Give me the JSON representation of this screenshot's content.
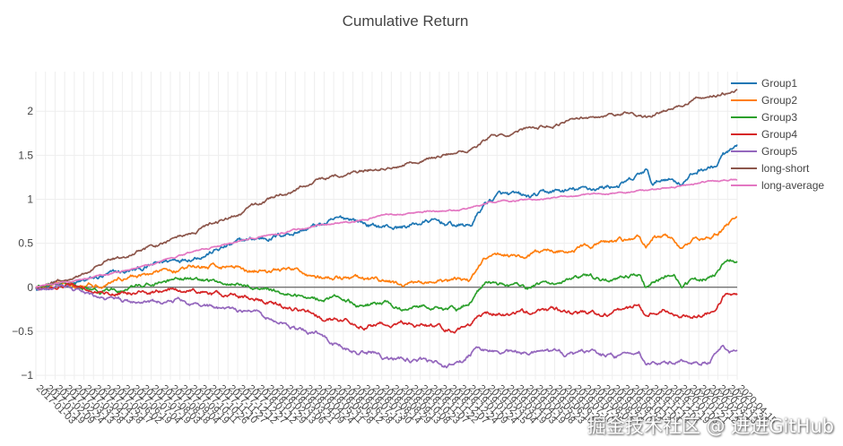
{
  "chart_data": {
    "type": "line",
    "title": "Cumulative Return",
    "xlabel": "",
    "ylabel": "",
    "ylim": [
      -1.05,
      2.45
    ],
    "yticks": [
      -1,
      -0.5,
      0,
      0.5,
      1,
      1.5,
      2
    ],
    "ytick_labels": [
      "−1",
      "−0.5",
      "0",
      "0.5",
      "1",
      "1.5",
      "2"
    ],
    "grid": true,
    "legend_position": "top-right",
    "x_tick_labels": [
      "2017-01-03",
      "2017-01-19",
      "2017-02-09",
      "2017-02-24",
      "2017-03-13",
      "2017-03-28",
      "2017-04-13",
      "2017-04-28",
      "2017-05-17",
      "2017-06-02",
      "2017-06-19",
      "2017-07-04",
      "2017-07-19",
      "2017-08-03",
      "2017-08-18",
      "2017-09-04",
      "2017-09-19",
      "2017-10-11",
      "2017-10-26",
      "2017-11-10",
      "2017-11-27",
      "2017-12-12",
      "2017-12-27",
      "2018-01-12",
      "2018-01-29",
      "2018-02-13",
      "2018-03-06",
      "2018-03-21",
      "2018-04-09",
      "2018-04-24",
      "2018-05-11",
      "2018-05-28",
      "2018-06-12",
      "2018-06-28",
      "2018-07-13",
      "2018-07-30",
      "2018-08-14",
      "2018-08-29",
      "2018-09-13",
      "2018-10-08",
      "2018-10-23",
      "2018-11-07",
      "2018-11-22",
      "2018-12-07",
      "2018-12-24",
      "2019-01-09",
      "2019-01-24",
      "2019-02-15",
      "2019-03-04",
      "2019-03-19",
      "2019-04-03",
      "2019-04-19",
      "2019-05-08",
      "2019-05-23",
      "2019-06-10",
      "2019-06-25",
      "2019-07-10",
      "2019-07-25",
      "2019-08-09",
      "2019-08-26",
      "2019-09-10",
      "2019-09-26",
      "2019-10-18",
      "2019-11-04",
      "2019-11-19",
      "2019-12-04",
      "2019-12-19",
      "2020-01-06",
      "2020-01-21",
      "2020-02-12",
      "2020-02-27",
      "2020-03-13",
      "2020-03-30",
      "2020-04-15"
    ],
    "series": [
      {
        "name": "Group1",
        "color": "#1f77b4",
        "volatility": 0.018,
        "anchors": [
          [
            0,
            0
          ],
          [
            0.06,
            0.04
          ],
          [
            0.1,
            0.12
          ],
          [
            0.15,
            0.2
          ],
          [
            0.2,
            0.32
          ],
          [
            0.25,
            0.42
          ],
          [
            0.3,
            0.52
          ],
          [
            0.35,
            0.6
          ],
          [
            0.4,
            0.7
          ],
          [
            0.45,
            0.78
          ],
          [
            0.48,
            0.7
          ],
          [
            0.52,
            0.68
          ],
          [
            0.56,
            0.75
          ],
          [
            0.6,
            0.7
          ],
          [
            0.62,
            0.7
          ],
          [
            0.64,
            0.95
          ],
          [
            0.66,
            1.05
          ],
          [
            0.7,
            1.0
          ],
          [
            0.74,
            1.08
          ],
          [
            0.78,
            1.1
          ],
          [
            0.82,
            1.15
          ],
          [
            0.85,
            1.2
          ],
          [
            0.87,
            1.32
          ],
          [
            0.88,
            1.15
          ],
          [
            0.9,
            1.25
          ],
          [
            0.92,
            1.2
          ],
          [
            0.95,
            1.35
          ],
          [
            0.97,
            1.38
          ],
          [
            0.98,
            1.5
          ],
          [
            1.0,
            1.56
          ]
        ]
      },
      {
        "name": "Group2",
        "color": "#ff7f0e",
        "volatility": 0.016,
        "anchors": [
          [
            0,
            0
          ],
          [
            0.04,
            0.03
          ],
          [
            0.07,
            0.06
          ],
          [
            0.09,
            0.05
          ],
          [
            0.12,
            0.12
          ],
          [
            0.17,
            0.17
          ],
          [
            0.22,
            0.22
          ],
          [
            0.28,
            0.25
          ],
          [
            0.31,
            0.2
          ],
          [
            0.36,
            0.2
          ],
          [
            0.42,
            0.1
          ],
          [
            0.46,
            0.08
          ],
          [
            0.5,
            0.05
          ],
          [
            0.53,
            0.02
          ],
          [
            0.55,
            0.06
          ],
          [
            0.58,
            0.05
          ],
          [
            0.62,
            0.08
          ],
          [
            0.64,
            0.3
          ],
          [
            0.67,
            0.38
          ],
          [
            0.7,
            0.35
          ],
          [
            0.74,
            0.42
          ],
          [
            0.78,
            0.45
          ],
          [
            0.81,
            0.5
          ],
          [
            0.84,
            0.52
          ],
          [
            0.86,
            0.57
          ],
          [
            0.87,
            0.45
          ],
          [
            0.88,
            0.55
          ],
          [
            0.9,
            0.58
          ],
          [
            0.92,
            0.46
          ],
          [
            0.95,
            0.55
          ],
          [
            0.98,
            0.65
          ],
          [
            0.99,
            0.75
          ],
          [
            1.0,
            0.78
          ]
        ]
      },
      {
        "name": "Group3",
        "color": "#2ca02c",
        "volatility": 0.015,
        "anchors": [
          [
            0,
            0
          ],
          [
            0.05,
            0.03
          ],
          [
            0.08,
            -0.06
          ],
          [
            0.12,
            -0.05
          ],
          [
            0.17,
            0.05
          ],
          [
            0.22,
            0.08
          ],
          [
            0.27,
            0.05
          ],
          [
            0.3,
            0.02
          ],
          [
            0.35,
            -0.05
          ],
          [
            0.4,
            -0.12
          ],
          [
            0.43,
            -0.1
          ],
          [
            0.46,
            -0.2
          ],
          [
            0.5,
            -0.18
          ],
          [
            0.52,
            -0.25
          ],
          [
            0.55,
            -0.18
          ],
          [
            0.58,
            -0.22
          ],
          [
            0.6,
            -0.25
          ],
          [
            0.62,
            -0.15
          ],
          [
            0.64,
            0.05
          ],
          [
            0.67,
            0.03
          ],
          [
            0.7,
            0.0
          ],
          [
            0.73,
            0.05
          ],
          [
            0.76,
            0.08
          ],
          [
            0.79,
            0.1
          ],
          [
            0.82,
            0.05
          ],
          [
            0.85,
            0.12
          ],
          [
            0.86,
            0.15
          ],
          [
            0.87,
            0.0
          ],
          [
            0.89,
            0.1
          ],
          [
            0.91,
            0.15
          ],
          [
            0.92,
            0.03
          ],
          [
            0.95,
            0.08
          ],
          [
            0.97,
            0.15
          ],
          [
            0.98,
            0.28
          ],
          [
            1.0,
            0.32
          ]
        ]
      },
      {
        "name": "Group4",
        "color": "#d62728",
        "volatility": 0.016,
        "anchors": [
          [
            0,
            0
          ],
          [
            0.05,
            0.04
          ],
          [
            0.08,
            -0.05
          ],
          [
            0.13,
            -0.05
          ],
          [
            0.18,
            -0.03
          ],
          [
            0.23,
            -0.05
          ],
          [
            0.27,
            -0.1
          ],
          [
            0.3,
            -0.12
          ],
          [
            0.34,
            -0.18
          ],
          [
            0.38,
            -0.25
          ],
          [
            0.41,
            -0.35
          ],
          [
            0.44,
            -0.38
          ],
          [
            0.48,
            -0.42
          ],
          [
            0.52,
            -0.38
          ],
          [
            0.56,
            -0.45
          ],
          [
            0.6,
            -0.48
          ],
          [
            0.62,
            -0.4
          ],
          [
            0.63,
            -0.28
          ],
          [
            0.66,
            -0.28
          ],
          [
            0.7,
            -0.3
          ],
          [
            0.74,
            -0.25
          ],
          [
            0.78,
            -0.3
          ],
          [
            0.82,
            -0.28
          ],
          [
            0.85,
            -0.25
          ],
          [
            0.86,
            -0.2
          ],
          [
            0.87,
            -0.32
          ],
          [
            0.9,
            -0.25
          ],
          [
            0.92,
            -0.33
          ],
          [
            0.95,
            -0.3
          ],
          [
            0.97,
            -0.25
          ],
          [
            0.98,
            -0.12
          ],
          [
            1.0,
            -0.1
          ]
        ]
      },
      {
        "name": "Group5",
        "color": "#9467bd",
        "volatility": 0.016,
        "anchors": [
          [
            0,
            0
          ],
          [
            0.04,
            -0.02
          ],
          [
            0.08,
            -0.12
          ],
          [
            0.1,
            -0.15
          ],
          [
            0.15,
            -0.18
          ],
          [
            0.2,
            -0.15
          ],
          [
            0.25,
            -0.22
          ],
          [
            0.3,
            -0.28
          ],
          [
            0.33,
            -0.35
          ],
          [
            0.37,
            -0.45
          ],
          [
            0.4,
            -0.52
          ],
          [
            0.42,
            -0.65
          ],
          [
            0.45,
            -0.72
          ],
          [
            0.48,
            -0.75
          ],
          [
            0.5,
            -0.8
          ],
          [
            0.53,
            -0.82
          ],
          [
            0.56,
            -0.85
          ],
          [
            0.58,
            -0.9
          ],
          [
            0.61,
            -0.85
          ],
          [
            0.63,
            -0.7
          ],
          [
            0.66,
            -0.72
          ],
          [
            0.7,
            -0.75
          ],
          [
            0.74,
            -0.78
          ],
          [
            0.78,
            -0.76
          ],
          [
            0.82,
            -0.8
          ],
          [
            0.85,
            -0.8
          ],
          [
            0.86,
            -0.72
          ],
          [
            0.87,
            -0.85
          ],
          [
            0.9,
            -0.85
          ],
          [
            0.93,
            -0.85
          ],
          [
            0.96,
            -0.82
          ],
          [
            0.98,
            -0.67
          ],
          [
            0.99,
            -0.72
          ],
          [
            1.0,
            -0.67
          ]
        ]
      },
      {
        "name": "long-short",
        "color": "#8c564b",
        "volatility": 0.012,
        "anchors": [
          [
            0,
            0
          ],
          [
            0.06,
            0.12
          ],
          [
            0.1,
            0.28
          ],
          [
            0.15,
            0.43
          ],
          [
            0.2,
            0.55
          ],
          [
            0.25,
            0.72
          ],
          [
            0.3,
            0.88
          ],
          [
            0.35,
            1.05
          ],
          [
            0.4,
            1.2
          ],
          [
            0.45,
            1.3
          ],
          [
            0.5,
            1.38
          ],
          [
            0.55,
            1.45
          ],
          [
            0.6,
            1.52
          ],
          [
            0.62,
            1.58
          ],
          [
            0.65,
            1.72
          ],
          [
            0.7,
            1.82
          ],
          [
            0.75,
            1.87
          ],
          [
            0.8,
            1.92
          ],
          [
            0.85,
            1.98
          ],
          [
            0.87,
            1.93
          ],
          [
            0.9,
            2.02
          ],
          [
            0.93,
            2.1
          ],
          [
            0.96,
            2.18
          ],
          [
            0.98,
            2.22
          ],
          [
            1.0,
            2.24
          ]
        ]
      },
      {
        "name": "long-average",
        "color": "#e377c2",
        "volatility": 0.006,
        "anchors": [
          [
            0,
            0
          ],
          [
            0.06,
            0.08
          ],
          [
            0.1,
            0.15
          ],
          [
            0.15,
            0.25
          ],
          [
            0.2,
            0.35
          ],
          [
            0.25,
            0.45
          ],
          [
            0.3,
            0.55
          ],
          [
            0.35,
            0.62
          ],
          [
            0.4,
            0.7
          ],
          [
            0.45,
            0.75
          ],
          [
            0.5,
            0.82
          ],
          [
            0.55,
            0.85
          ],
          [
            0.6,
            0.88
          ],
          [
            0.62,
            0.9
          ],
          [
            0.65,
            0.97
          ],
          [
            0.7,
            1.0
          ],
          [
            0.75,
            1.03
          ],
          [
            0.8,
            1.06
          ],
          [
            0.85,
            1.08
          ],
          [
            0.87,
            1.1
          ],
          [
            0.9,
            1.13
          ],
          [
            0.93,
            1.16
          ],
          [
            0.96,
            1.2
          ],
          [
            1.0,
            1.22
          ]
        ]
      }
    ]
  },
  "watermark": "掘金技术社区 @ 进进GitHub"
}
